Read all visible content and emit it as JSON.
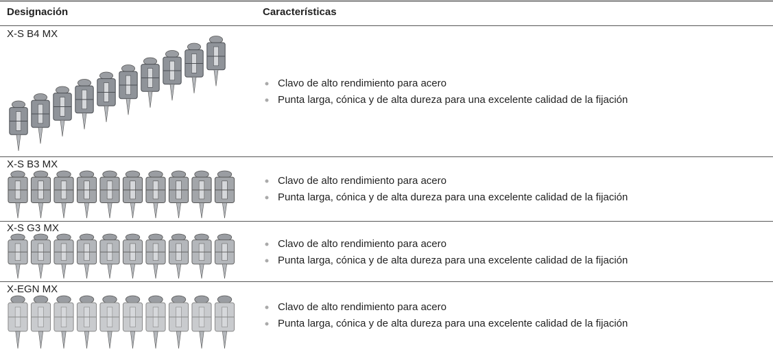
{
  "header": {
    "designation": "Designación",
    "characteristics": "Características"
  },
  "rows": [
    {
      "designation": "X-S B4 MX",
      "features": [
        "Clavo de alto rendimiento para acero",
        "Punta larga, cónica y de alta dureza para una excelente calidad de la fijación"
      ]
    },
    {
      "designation": "X-S B3 MX",
      "features": [
        "Clavo de alto rendimiento para acero",
        "Punta larga, cónica y de alta dureza para una excelente calidad de la fijación"
      ]
    },
    {
      "designation": "X-S G3 MX",
      "features": [
        "Clavo de alto rendimiento para acero",
        "Punta larga, cónica y de alta dureza para una excelente calidad de la fijación"
      ]
    },
    {
      "designation": "X-EGN MX",
      "features": [
        "Clavo de alto rendimiento para acero",
        "Punta larga, cónica y de alta dureza para una excelente calidad de la fijación"
      ]
    }
  ]
}
